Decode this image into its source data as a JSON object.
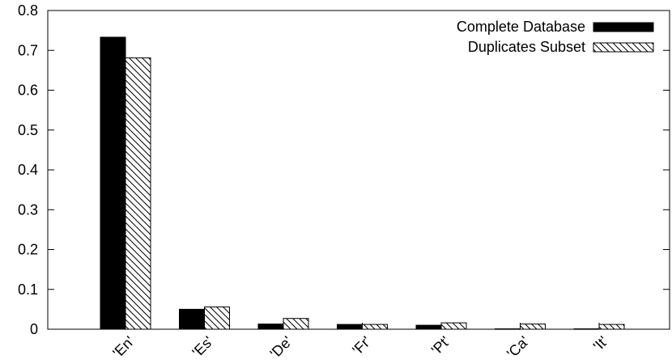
{
  "chart_data": {
    "type": "bar",
    "categories": [
      "'En'",
      "'Es'",
      "'De'",
      "'Fr'",
      "'Pt'",
      "'Ca'",
      "'It'"
    ],
    "series": [
      {
        "name": "Complete Database",
        "values": [
          0.733,
          0.05,
          0.013,
          0.012,
          0.01,
          0.001,
          0.001
        ],
        "fill": "solid",
        "color": "#000000"
      },
      {
        "name": "Duplicates Subset",
        "values": [
          0.681,
          0.056,
          0.027,
          0.012,
          0.016,
          0.013,
          0.012
        ],
        "fill": "hatched",
        "color": "#000000"
      }
    ],
    "title": "",
    "xlabel": "",
    "ylabel": "",
    "ylim": [
      0,
      0.8
    ],
    "yticks": [
      "0",
      "0.1",
      "0.2",
      "0.3",
      "0.4",
      "0.5",
      "0.6",
      "0.7",
      "0.8"
    ],
    "grid": false,
    "legend_position": "top-right"
  }
}
